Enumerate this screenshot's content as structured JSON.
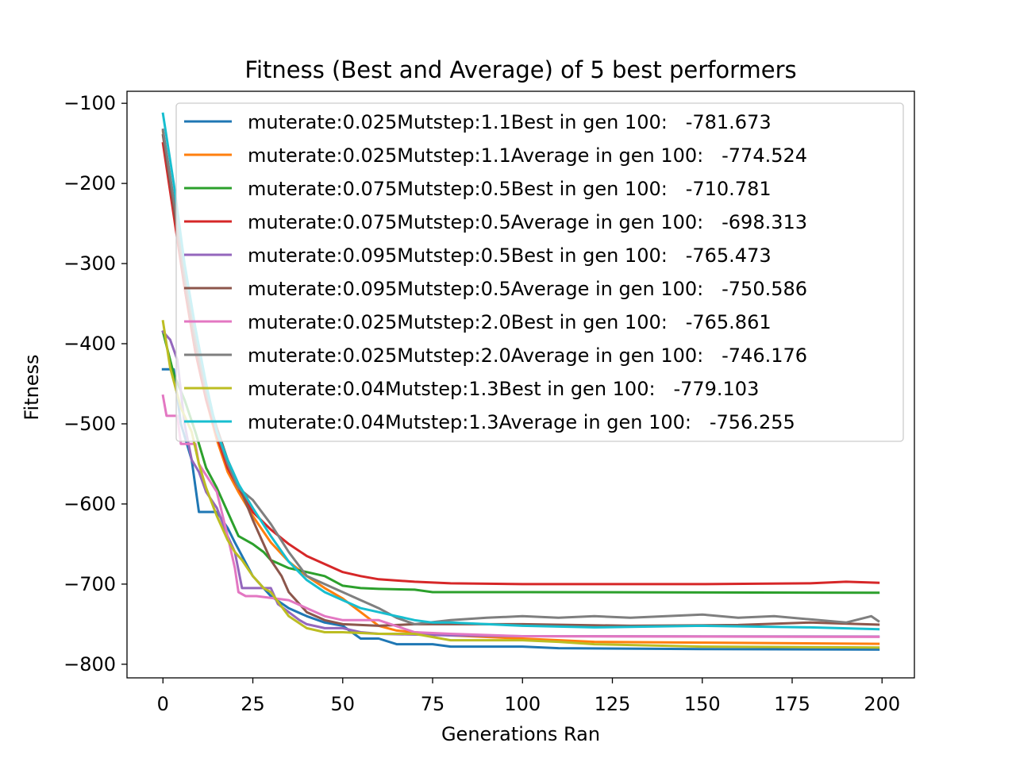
{
  "chart_data": {
    "type": "line",
    "title": "Fitness (Best and Average) of 5 best performers",
    "xlabel": "Generations Ran",
    "ylabel": "Fitness",
    "xlim": [
      -10,
      209
    ],
    "ylim": [
      -817,
      -85
    ],
    "xticks": [
      0,
      25,
      50,
      75,
      100,
      125,
      150,
      175,
      200
    ],
    "xtick_labels": [
      "0",
      "25",
      "50",
      "75",
      "100",
      "125",
      "150",
      "175",
      "200"
    ],
    "yticks": [
      -100,
      -200,
      -300,
      -400,
      -500,
      -600,
      -700,
      -800
    ],
    "ytick_labels": [
      "−100",
      "−200",
      "−300",
      "−400",
      "−500",
      "−600",
      "−700",
      "−800"
    ],
    "grid": false,
    "legend_position": "top-right",
    "series": [
      {
        "name": "muterate:0.025Mutstep:1.1Best in gen 100:   -781.673",
        "color": "#1f77b4",
        "points": [
          [
            0,
            -432
          ],
          [
            3,
            -432
          ],
          [
            5,
            -500
          ],
          [
            8,
            -545
          ],
          [
            10,
            -610
          ],
          [
            15,
            -610
          ],
          [
            18,
            -630
          ],
          [
            20,
            -648
          ],
          [
            25,
            -690
          ],
          [
            30,
            -715
          ],
          [
            35,
            -730
          ],
          [
            40,
            -740
          ],
          [
            45,
            -748
          ],
          [
            50,
            -752
          ],
          [
            55,
            -768
          ],
          [
            60,
            -768
          ],
          [
            65,
            -775
          ],
          [
            75,
            -775
          ],
          [
            80,
            -778
          ],
          [
            100,
            -778
          ],
          [
            110,
            -780
          ],
          [
            150,
            -781
          ],
          [
            199,
            -781.7
          ]
        ]
      },
      {
        "name": "muterate:0.025Mutstep:1.1Average in gen 100:   -774.524",
        "color": "#ff7f0e",
        "points": [
          [
            0,
            -135
          ],
          [
            3,
            -230
          ],
          [
            6,
            -330
          ],
          [
            9,
            -410
          ],
          [
            12,
            -470
          ],
          [
            15,
            -520
          ],
          [
            18,
            -560
          ],
          [
            21,
            -585
          ],
          [
            25,
            -615
          ],
          [
            30,
            -648
          ],
          [
            35,
            -672
          ],
          [
            40,
            -690
          ],
          [
            45,
            -705
          ],
          [
            50,
            -718
          ],
          [
            55,
            -735
          ],
          [
            60,
            -752
          ],
          [
            65,
            -758
          ],
          [
            70,
            -760
          ],
          [
            80,
            -764
          ],
          [
            100,
            -768
          ],
          [
            120,
            -772
          ],
          [
            150,
            -773
          ],
          [
            199,
            -774.5
          ]
        ]
      },
      {
        "name": "muterate:0.075Mutstep:0.5Best in gen 100:   -710.781",
        "color": "#2ca02c",
        "points": [
          [
            0,
            -385
          ],
          [
            3,
            -438
          ],
          [
            6,
            -470
          ],
          [
            9,
            -510
          ],
          [
            12,
            -555
          ],
          [
            15,
            -580
          ],
          [
            18,
            -610
          ],
          [
            21,
            -640
          ],
          [
            25,
            -650
          ],
          [
            28,
            -660
          ],
          [
            30,
            -670
          ],
          [
            35,
            -680
          ],
          [
            40,
            -685
          ],
          [
            45,
            -690
          ],
          [
            50,
            -702
          ],
          [
            55,
            -705
          ],
          [
            60,
            -706
          ],
          [
            70,
            -707
          ],
          [
            75,
            -710
          ],
          [
            100,
            -710
          ],
          [
            199,
            -710.8
          ]
        ]
      },
      {
        "name": "muterate:0.075Mutstep:0.5Average in gen 100:   -698.313",
        "color": "#d62728",
        "points": [
          [
            0,
            -150
          ],
          [
            3,
            -240
          ],
          [
            6,
            -330
          ],
          [
            9,
            -410
          ],
          [
            12,
            -470
          ],
          [
            15,
            -515
          ],
          [
            18,
            -555
          ],
          [
            21,
            -580
          ],
          [
            25,
            -610
          ],
          [
            30,
            -632
          ],
          [
            35,
            -650
          ],
          [
            40,
            -665
          ],
          [
            45,
            -675
          ],
          [
            50,
            -685
          ],
          [
            55,
            -690
          ],
          [
            60,
            -694
          ],
          [
            70,
            -697
          ],
          [
            80,
            -699
          ],
          [
            100,
            -700
          ],
          [
            120,
            -700
          ],
          [
            150,
            -700
          ],
          [
            180,
            -699
          ],
          [
            190,
            -697
          ],
          [
            199,
            -698.3
          ]
        ]
      },
      {
        "name": "muterate:0.095Mutstep:0.5Best in gen 100:   -765.473",
        "color": "#9467bd",
        "points": [
          [
            0,
            -385
          ],
          [
            2,
            -395
          ],
          [
            4,
            -420
          ],
          [
            6,
            -500
          ],
          [
            8,
            -545
          ],
          [
            10,
            -560
          ],
          [
            12,
            -585
          ],
          [
            15,
            -605
          ],
          [
            18,
            -640
          ],
          [
            20,
            -660
          ],
          [
            22,
            -705
          ],
          [
            25,
            -705
          ],
          [
            28,
            -705
          ],
          [
            30,
            -705
          ],
          [
            32,
            -725
          ],
          [
            35,
            -735
          ],
          [
            38,
            -745
          ],
          [
            40,
            -750
          ],
          [
            45,
            -755
          ],
          [
            50,
            -755
          ],
          [
            55,
            -760
          ],
          [
            60,
            -762
          ],
          [
            80,
            -764
          ],
          [
            100,
            -765
          ],
          [
            199,
            -765.5
          ]
        ]
      },
      {
        "name": "muterate:0.095Mutstep:0.5Average in gen 100:   -750.586",
        "color": "#8c564b",
        "points": [
          [
            0,
            -140
          ],
          [
            3,
            -230
          ],
          [
            6,
            -320
          ],
          [
            9,
            -400
          ],
          [
            12,
            -460
          ],
          [
            15,
            -505
          ],
          [
            18,
            -545
          ],
          [
            21,
            -575
          ],
          [
            25,
            -620
          ],
          [
            28,
            -650
          ],
          [
            30,
            -670
          ],
          [
            33,
            -690
          ],
          [
            35,
            -710
          ],
          [
            38,
            -725
          ],
          [
            40,
            -735
          ],
          [
            45,
            -745
          ],
          [
            50,
            -750
          ],
          [
            60,
            -752
          ],
          [
            70,
            -750
          ],
          [
            80,
            -750
          ],
          [
            100,
            -750
          ],
          [
            130,
            -752
          ],
          [
            160,
            -751
          ],
          [
            180,
            -748
          ],
          [
            199,
            -750.6
          ]
        ]
      },
      {
        "name": "muterate:0.025Mutstep:2.0Best in gen 100:   -765.861",
        "color": "#e377c2",
        "points": [
          [
            0,
            -465
          ],
          [
            1,
            -490
          ],
          [
            4,
            -490
          ],
          [
            5,
            -525
          ],
          [
            9,
            -525
          ],
          [
            10,
            -550
          ],
          [
            15,
            -585
          ],
          [
            18,
            -640
          ],
          [
            20,
            -680
          ],
          [
            21,
            -710
          ],
          [
            23,
            -715
          ],
          [
            26,
            -715
          ],
          [
            35,
            -720
          ],
          [
            40,
            -730
          ],
          [
            45,
            -740
          ],
          [
            50,
            -745
          ],
          [
            60,
            -745
          ],
          [
            70,
            -760
          ],
          [
            80,
            -762
          ],
          [
            100,
            -765
          ],
          [
            199,
            -765.9
          ]
        ]
      },
      {
        "name": "muterate:0.025Mutstep:2.0Average in gen 100:   -746.176",
        "color": "#7f7f7f",
        "points": [
          [
            0,
            -133
          ],
          [
            3,
            -220
          ],
          [
            6,
            -310
          ],
          [
            9,
            -390
          ],
          [
            12,
            -460
          ],
          [
            15,
            -510
          ],
          [
            18,
            -550
          ],
          [
            21,
            -580
          ],
          [
            25,
            -595
          ],
          [
            30,
            -625
          ],
          [
            35,
            -660
          ],
          [
            40,
            -690
          ],
          [
            45,
            -700
          ],
          [
            50,
            -710
          ],
          [
            55,
            -720
          ],
          [
            60,
            -730
          ],
          [
            65,
            -742
          ],
          [
            70,
            -750
          ],
          [
            80,
            -745
          ],
          [
            90,
            -742
          ],
          [
            100,
            -740
          ],
          [
            110,
            -742
          ],
          [
            120,
            -740
          ],
          [
            130,
            -742
          ],
          [
            140,
            -740
          ],
          [
            150,
            -738
          ],
          [
            160,
            -742
          ],
          [
            170,
            -740
          ],
          [
            180,
            -744
          ],
          [
            190,
            -748
          ],
          [
            197,
            -740
          ],
          [
            199,
            -746.2
          ]
        ]
      },
      {
        "name": "muterate:0.04Mutstep:1.3Best in gen 100:   -779.103",
        "color": "#bcbd22",
        "points": [
          [
            0,
            -372
          ],
          [
            2,
            -430
          ],
          [
            5,
            -480
          ],
          [
            8,
            -510
          ],
          [
            10,
            -550
          ],
          [
            12,
            -580
          ],
          [
            15,
            -615
          ],
          [
            18,
            -645
          ],
          [
            20,
            -660
          ],
          [
            22,
            -670
          ],
          [
            25,
            -690
          ],
          [
            28,
            -705
          ],
          [
            30,
            -710
          ],
          [
            35,
            -740
          ],
          [
            40,
            -755
          ],
          [
            45,
            -760
          ],
          [
            50,
            -760
          ],
          [
            60,
            -762
          ],
          [
            70,
            -762
          ],
          [
            80,
            -770
          ],
          [
            100,
            -770
          ],
          [
            110,
            -772
          ],
          [
            120,
            -775
          ],
          [
            150,
            -778
          ],
          [
            199,
            -779.1
          ]
        ]
      },
      {
        "name": "muterate:0.04Mutstep:1.3Average in gen 100:   -756.255",
        "color": "#17becf",
        "points": [
          [
            0,
            -113
          ],
          [
            3,
            -200
          ],
          [
            6,
            -300
          ],
          [
            9,
            -380
          ],
          [
            12,
            -450
          ],
          [
            15,
            -510
          ],
          [
            18,
            -545
          ],
          [
            21,
            -575
          ],
          [
            25,
            -605
          ],
          [
            30,
            -640
          ],
          [
            35,
            -672
          ],
          [
            40,
            -695
          ],
          [
            45,
            -710
          ],
          [
            50,
            -720
          ],
          [
            55,
            -730
          ],
          [
            60,
            -735
          ],
          [
            65,
            -740
          ],
          [
            70,
            -745
          ],
          [
            75,
            -748
          ],
          [
            80,
            -748
          ],
          [
            100,
            -752
          ],
          [
            120,
            -754
          ],
          [
            150,
            -752
          ],
          [
            180,
            -754
          ],
          [
            199,
            -756.3
          ]
        ]
      }
    ]
  }
}
